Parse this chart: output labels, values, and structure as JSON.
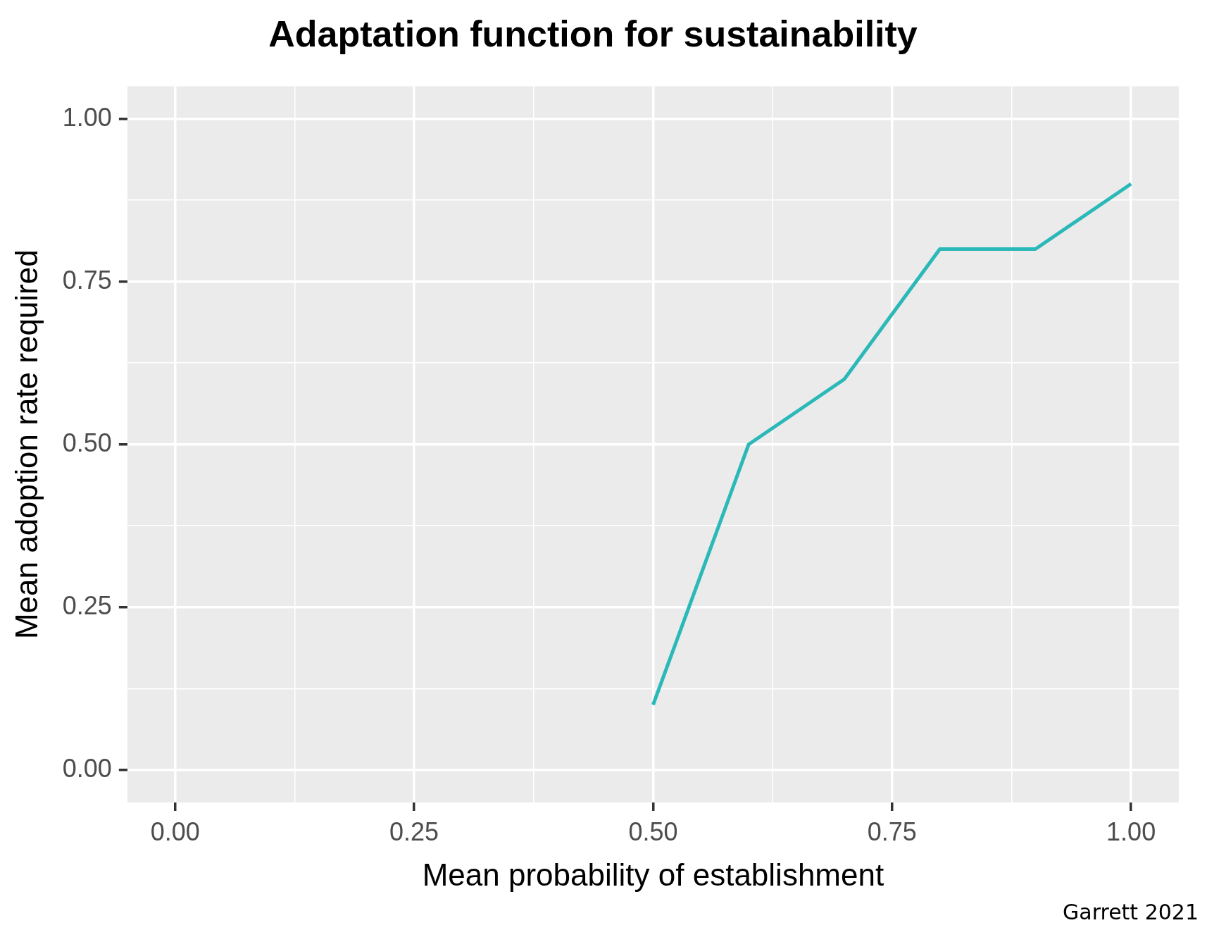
{
  "chart_data": {
    "type": "line",
    "title": "Adaptation function for sustainability",
    "xlabel": "Mean probability of establishment",
    "ylabel": "Mean adoption rate required",
    "x": [
      0.5,
      0.6,
      0.7,
      0.8,
      0.9,
      1.0
    ],
    "series": [
      {
        "color": "#2bb8b8",
        "values": [
          0.1,
          0.5,
          0.6,
          0.8,
          0.8,
          0.9
        ]
      }
    ],
    "xlim": [
      -0.05,
      1.05
    ],
    "ylim": [
      -0.05,
      1.05
    ],
    "xticks": [
      {
        "value": 0,
        "label": "0.00"
      },
      {
        "value": 0.125,
        "label": null
      },
      {
        "value": 0.25,
        "label": "0.25"
      },
      {
        "value": 0.375,
        "label": null
      },
      {
        "value": 0.5,
        "label": "0.50"
      },
      {
        "value": 0.625,
        "label": null
      },
      {
        "value": 0.75,
        "label": "0.75"
      },
      {
        "value": 0.875,
        "label": null
      },
      {
        "value": 1,
        "label": "1.00"
      }
    ],
    "yticks": [
      {
        "value": 0,
        "label": "0.00"
      },
      {
        "value": 0.125,
        "label": null
      },
      {
        "value": 0.25,
        "label": "0.25"
      },
      {
        "value": 0.375,
        "label": null
      },
      {
        "value": 0.5,
        "label": "0.50"
      },
      {
        "value": 0.625,
        "label": null
      },
      {
        "value": 0.75,
        "label": "0.75"
      },
      {
        "value": 0.875,
        "label": null
      },
      {
        "value": 1,
        "label": "1.00"
      }
    ],
    "grid": true,
    "legend": false,
    "marker": "none",
    "line_style": "solid",
    "annotations": [
      "Garrett 2021"
    ]
  }
}
